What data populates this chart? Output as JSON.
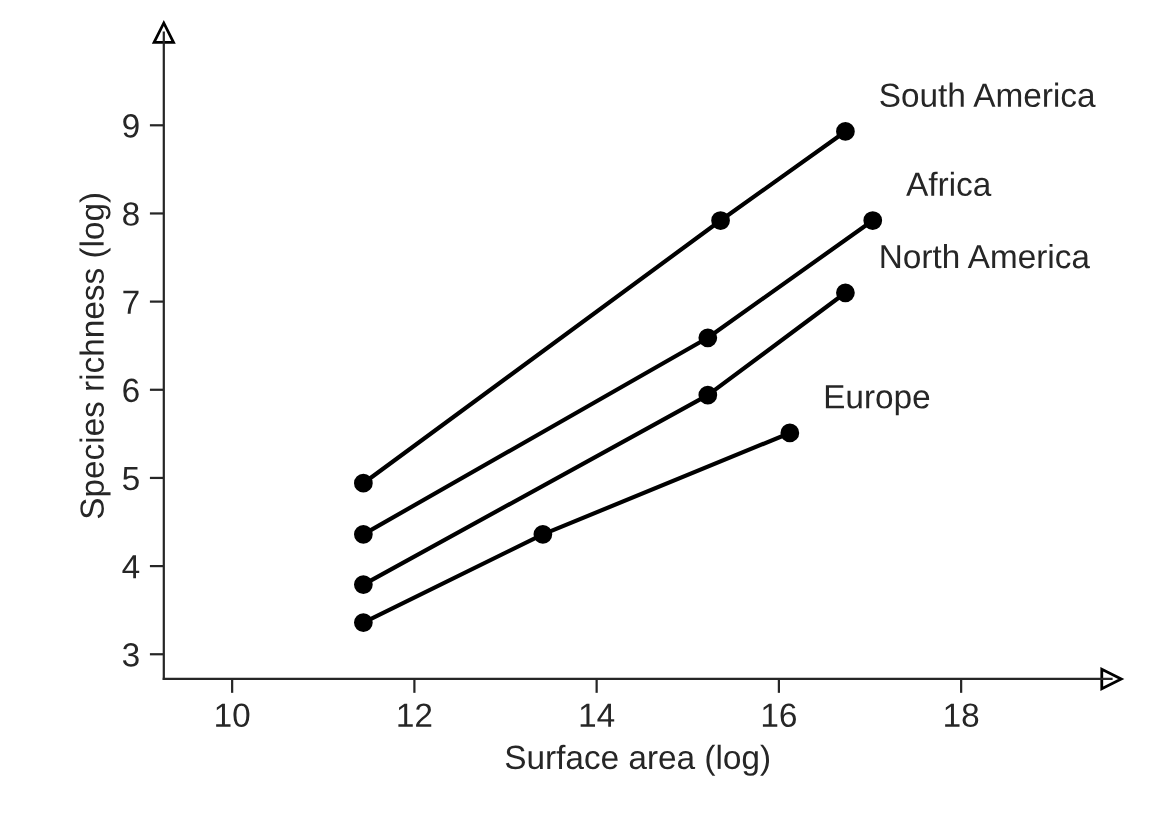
{
  "chart_data": {
    "type": "line",
    "xlabel": "Surface area (log)",
    "ylabel": "Species richness (log)",
    "xlim": [
      9.25,
      19.65
    ],
    "ylim": [
      2.72,
      10.05
    ],
    "xticks": [
      10,
      12,
      14,
      16,
      18
    ],
    "yticks": [
      3,
      4,
      5,
      6,
      7,
      8,
      9
    ],
    "grid": false,
    "legend": false,
    "marker": "circle",
    "line_style": "solid",
    "series": [
      {
        "name": "South America",
        "color": "#000000",
        "x": [
          11.44,
          15.36,
          16.73
        ],
        "values": [
          4.94,
          7.92,
          8.93
        ]
      },
      {
        "name": "Africa",
        "color": "#000000",
        "x": [
          11.44,
          15.22,
          17.03
        ],
        "values": [
          4.36,
          6.59,
          7.92
        ]
      },
      {
        "name": "North America",
        "color": "#000000",
        "x": [
          11.44,
          15.22,
          16.73
        ],
        "values": [
          3.79,
          5.94,
          7.1
        ]
      },
      {
        "name": "Europe",
        "color": "#000000",
        "x": [
          11.44,
          13.41,
          16.12
        ],
        "values": [
          3.36,
          4.36,
          5.51
        ]
      }
    ]
  }
}
